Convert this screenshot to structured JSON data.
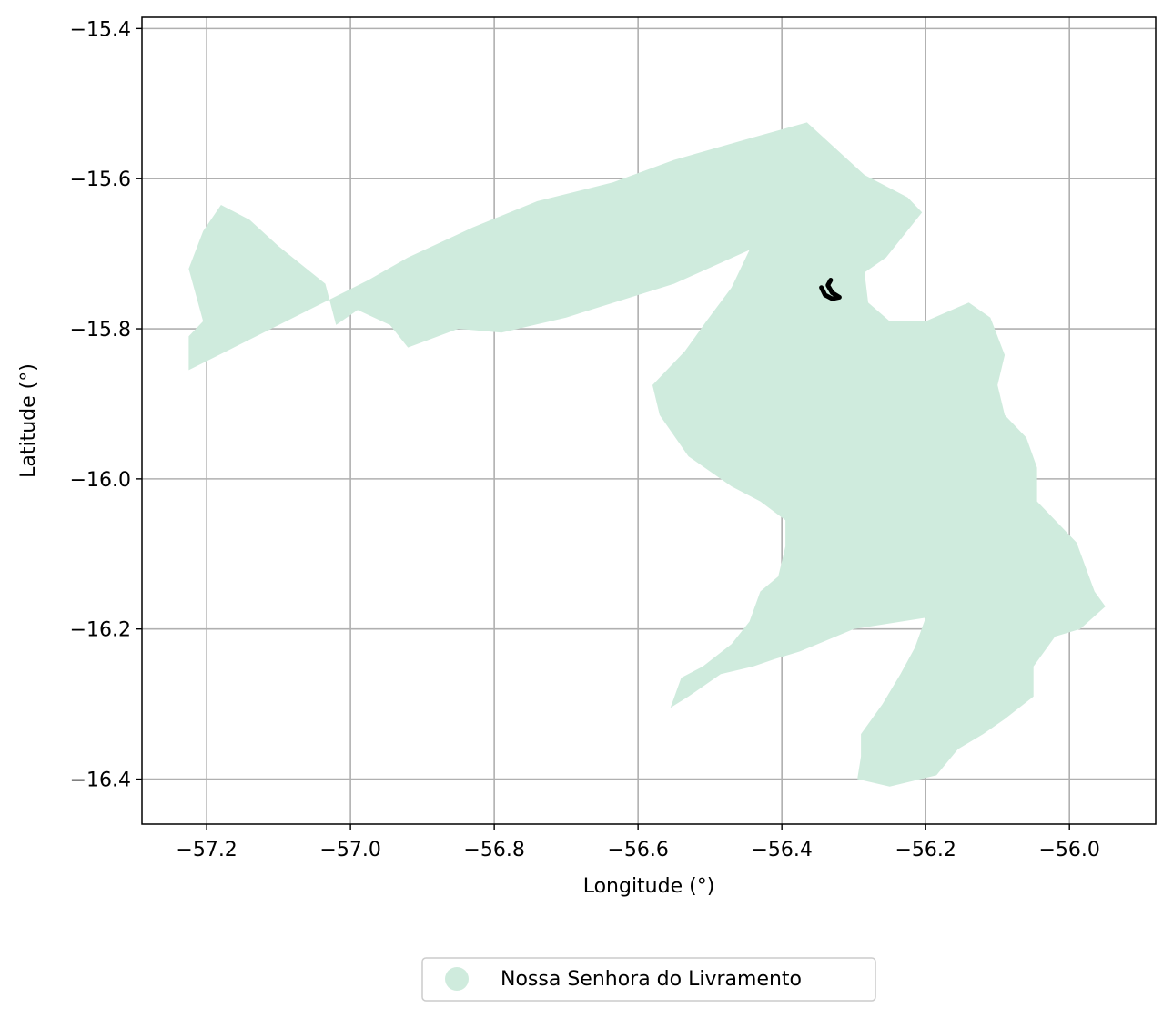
{
  "chart_data": {
    "type": "map",
    "xlabel": "Longitude (°)",
    "ylabel": "Latitude (°)",
    "xlim": [
      -57.29,
      -55.88
    ],
    "ylim": [
      -16.46,
      -15.385
    ],
    "x_ticks": [
      {
        "value": -57.2,
        "label": "−57.2"
      },
      {
        "value": -57.0,
        "label": "−57.0"
      },
      {
        "value": -56.8,
        "label": "−56.8"
      },
      {
        "value": -56.6,
        "label": "−56.6"
      },
      {
        "value": -56.4,
        "label": "−56.4"
      },
      {
        "value": -56.2,
        "label": "−56.2"
      },
      {
        "value": -56.0,
        "label": "−56.0"
      }
    ],
    "y_ticks": [
      {
        "value": -15.4,
        "label": "−15.4"
      },
      {
        "value": -15.6,
        "label": "−15.6"
      },
      {
        "value": -15.8,
        "label": "−15.8"
      },
      {
        "value": -16.0,
        "label": "−16.0"
      },
      {
        "value": -16.2,
        "label": "−16.2"
      },
      {
        "value": -16.4,
        "label": "−16.4"
      }
    ],
    "grid": true,
    "legend_position": "bottom-center",
    "region": {
      "name": "Nossa Senhora do Livramento",
      "color": "#cfebdd",
      "boundary": [
        [
          -57.225,
          -15.855
        ],
        [
          -56.975,
          -15.735
        ],
        [
          -56.92,
          -15.705
        ],
        [
          -56.83,
          -15.665
        ],
        [
          -56.74,
          -15.63
        ],
        [
          -56.635,
          -15.605
        ],
        [
          -56.55,
          -15.575
        ],
        [
          -56.44,
          -15.545
        ],
        [
          -56.365,
          -15.525
        ],
        [
          -56.285,
          -15.595
        ],
        [
          -56.225,
          -15.625
        ],
        [
          -56.205,
          -15.645
        ],
        [
          -56.255,
          -15.705
        ],
        [
          -56.285,
          -15.725
        ],
        [
          -56.28,
          -15.765
        ],
        [
          -56.25,
          -15.79
        ],
        [
          -56.2,
          -15.79
        ],
        [
          -56.14,
          -15.765
        ],
        [
          -56.11,
          -15.785
        ],
        [
          -56.09,
          -15.835
        ],
        [
          -56.1,
          -15.875
        ],
        [
          -56.09,
          -15.915
        ],
        [
          -56.06,
          -15.945
        ],
        [
          -56.045,
          -15.985
        ],
        [
          -56.045,
          -16.03
        ],
        [
          -55.99,
          -16.085
        ],
        [
          -55.965,
          -16.15
        ],
        [
          -55.95,
          -16.17
        ],
        [
          -55.985,
          -16.2
        ],
        [
          -56.02,
          -16.21
        ],
        [
          -56.05,
          -16.25
        ],
        [
          -56.05,
          -16.29
        ],
        [
          -56.09,
          -16.32
        ],
        [
          -56.12,
          -16.34
        ],
        [
          -56.155,
          -16.36
        ],
        [
          -56.185,
          -16.395
        ],
        [
          -56.25,
          -16.41
        ],
        [
          -56.295,
          -16.4
        ],
        [
          -56.29,
          -16.37
        ],
        [
          -56.29,
          -16.34
        ],
        [
          -56.26,
          -16.3
        ],
        [
          -56.235,
          -16.26
        ],
        [
          -56.215,
          -16.225
        ],
        [
          -56.2,
          -16.185
        ],
        [
          -56.3,
          -16.2
        ],
        [
          -56.375,
          -16.23
        ],
        [
          -56.41,
          -16.24
        ],
        [
          -56.44,
          -16.25
        ],
        [
          -56.485,
          -16.26
        ],
        [
          -56.53,
          -16.29
        ],
        [
          -56.555,
          -16.305
        ],
        [
          -56.54,
          -16.265
        ],
        [
          -56.51,
          -16.25
        ],
        [
          -56.47,
          -16.22
        ],
        [
          -56.445,
          -16.19
        ],
        [
          -56.43,
          -16.15
        ],
        [
          -56.405,
          -16.13
        ],
        [
          -56.395,
          -16.09
        ],
        [
          -56.395,
          -16.055
        ],
        [
          -56.43,
          -16.03
        ],
        [
          -56.47,
          -16.01
        ],
        [
          -56.53,
          -15.97
        ],
        [
          -56.57,
          -15.915
        ],
        [
          -56.58,
          -15.875
        ],
        [
          -56.535,
          -15.83
        ],
        [
          -56.505,
          -15.79
        ],
        [
          -56.47,
          -15.745
        ],
        [
          -56.445,
          -15.695
        ],
        [
          -56.55,
          -15.74
        ],
        [
          -56.7,
          -15.785
        ],
        [
          -56.79,
          -15.805
        ],
        [
          -56.85,
          -15.8
        ],
        [
          -56.92,
          -15.825
        ],
        [
          -56.945,
          -15.795
        ],
        [
          -56.99,
          -15.775
        ],
        [
          -57.02,
          -15.795
        ],
        [
          -57.035,
          -15.74
        ],
        [
          -57.1,
          -15.69
        ],
        [
          -57.14,
          -15.655
        ],
        [
          -57.18,
          -15.635
        ],
        [
          -57.205,
          -15.67
        ],
        [
          -57.225,
          -15.72
        ],
        [
          -57.205,
          -15.79
        ],
        [
          -57.225,
          -15.81
        ]
      ]
    },
    "highlight_path": {
      "color": "#000000",
      "points": [
        [
          -56.345,
          -15.745
        ],
        [
          -56.34,
          -15.755
        ],
        [
          -56.33,
          -15.76
        ],
        [
          -56.32,
          -15.758
        ],
        [
          -56.33,
          -15.752
        ],
        [
          -56.336,
          -15.742
        ],
        [
          -56.332,
          -15.735
        ]
      ]
    }
  },
  "legend": {
    "items": [
      {
        "label": "Nossa Senhora do Livramento",
        "color": "#cfebdd"
      }
    ]
  }
}
